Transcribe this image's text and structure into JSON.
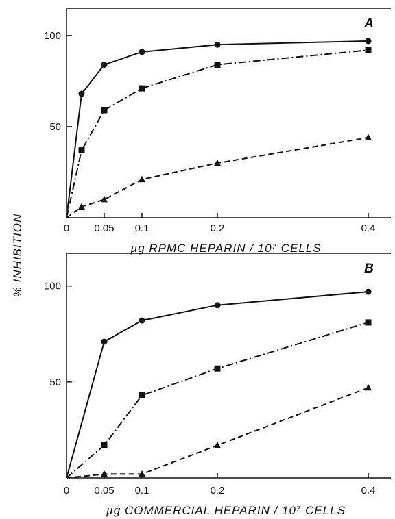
{
  "ylabel": "% INHIBITION",
  "chart_data": [
    {
      "type": "line",
      "panel": "A",
      "xlabel": "µg  RPMC  HEPARIN  / 10⁷ CELLS",
      "xlim": [
        0,
        0.43
      ],
      "ylim": [
        0,
        115
      ],
      "x_ticks": [
        0,
        0.05,
        0.1,
        0.2,
        0.4
      ],
      "x_tick_labels": [
        "0",
        "0.05",
        "0.1",
        "0.2",
        "0.4"
      ],
      "y_ticks": [
        50,
        100
      ],
      "y_tick_labels": [
        "50",
        "100"
      ],
      "series": [
        {
          "marker": "circle",
          "line": "solid",
          "x": [
            0,
            0.02,
            0.05,
            0.1,
            0.2,
            0.4
          ],
          "y": [
            0,
            68,
            84,
            91,
            95,
            97
          ]
        },
        {
          "marker": "square",
          "line": "dash-dot",
          "x": [
            0,
            0.02,
            0.05,
            0.1,
            0.2,
            0.4
          ],
          "y": [
            0,
            37,
            59,
            71,
            84,
            92
          ]
        },
        {
          "marker": "triangle",
          "line": "dashed",
          "x": [
            0,
            0.02,
            0.05,
            0.1,
            0.2,
            0.4
          ],
          "y": [
            0,
            6,
            10,
            21,
            30,
            44
          ]
        }
      ]
    },
    {
      "type": "line",
      "panel": "B",
      "xlabel": "µg  COMMERCIAL  HEPARIN  / 10⁷ CELLS",
      "xlim": [
        0,
        0.43
      ],
      "ylim": [
        0,
        117
      ],
      "x_ticks": [
        0,
        0.05,
        0.1,
        0.2,
        0.4
      ],
      "x_tick_labels": [
        "0",
        "0.05",
        "0.1",
        "0.2",
        "0.4"
      ],
      "y_ticks": [
        50,
        100
      ],
      "y_tick_labels": [
        "50",
        "100"
      ],
      "series": [
        {
          "marker": "circle",
          "line": "solid",
          "x": [
            0,
            0.05,
            0.1,
            0.2,
            0.4
          ],
          "y": [
            0,
            71,
            82,
            90,
            97
          ]
        },
        {
          "marker": "square",
          "line": "dash-dot",
          "x": [
            0,
            0.05,
            0.1,
            0.2,
            0.4
          ],
          "y": [
            0,
            17,
            43,
            57,
            81
          ]
        },
        {
          "marker": "triangle",
          "line": "dashed",
          "x": [
            0,
            0.05,
            0.1,
            0.2,
            0.4
          ],
          "y": [
            0,
            2,
            2,
            17,
            47
          ]
        }
      ]
    }
  ]
}
